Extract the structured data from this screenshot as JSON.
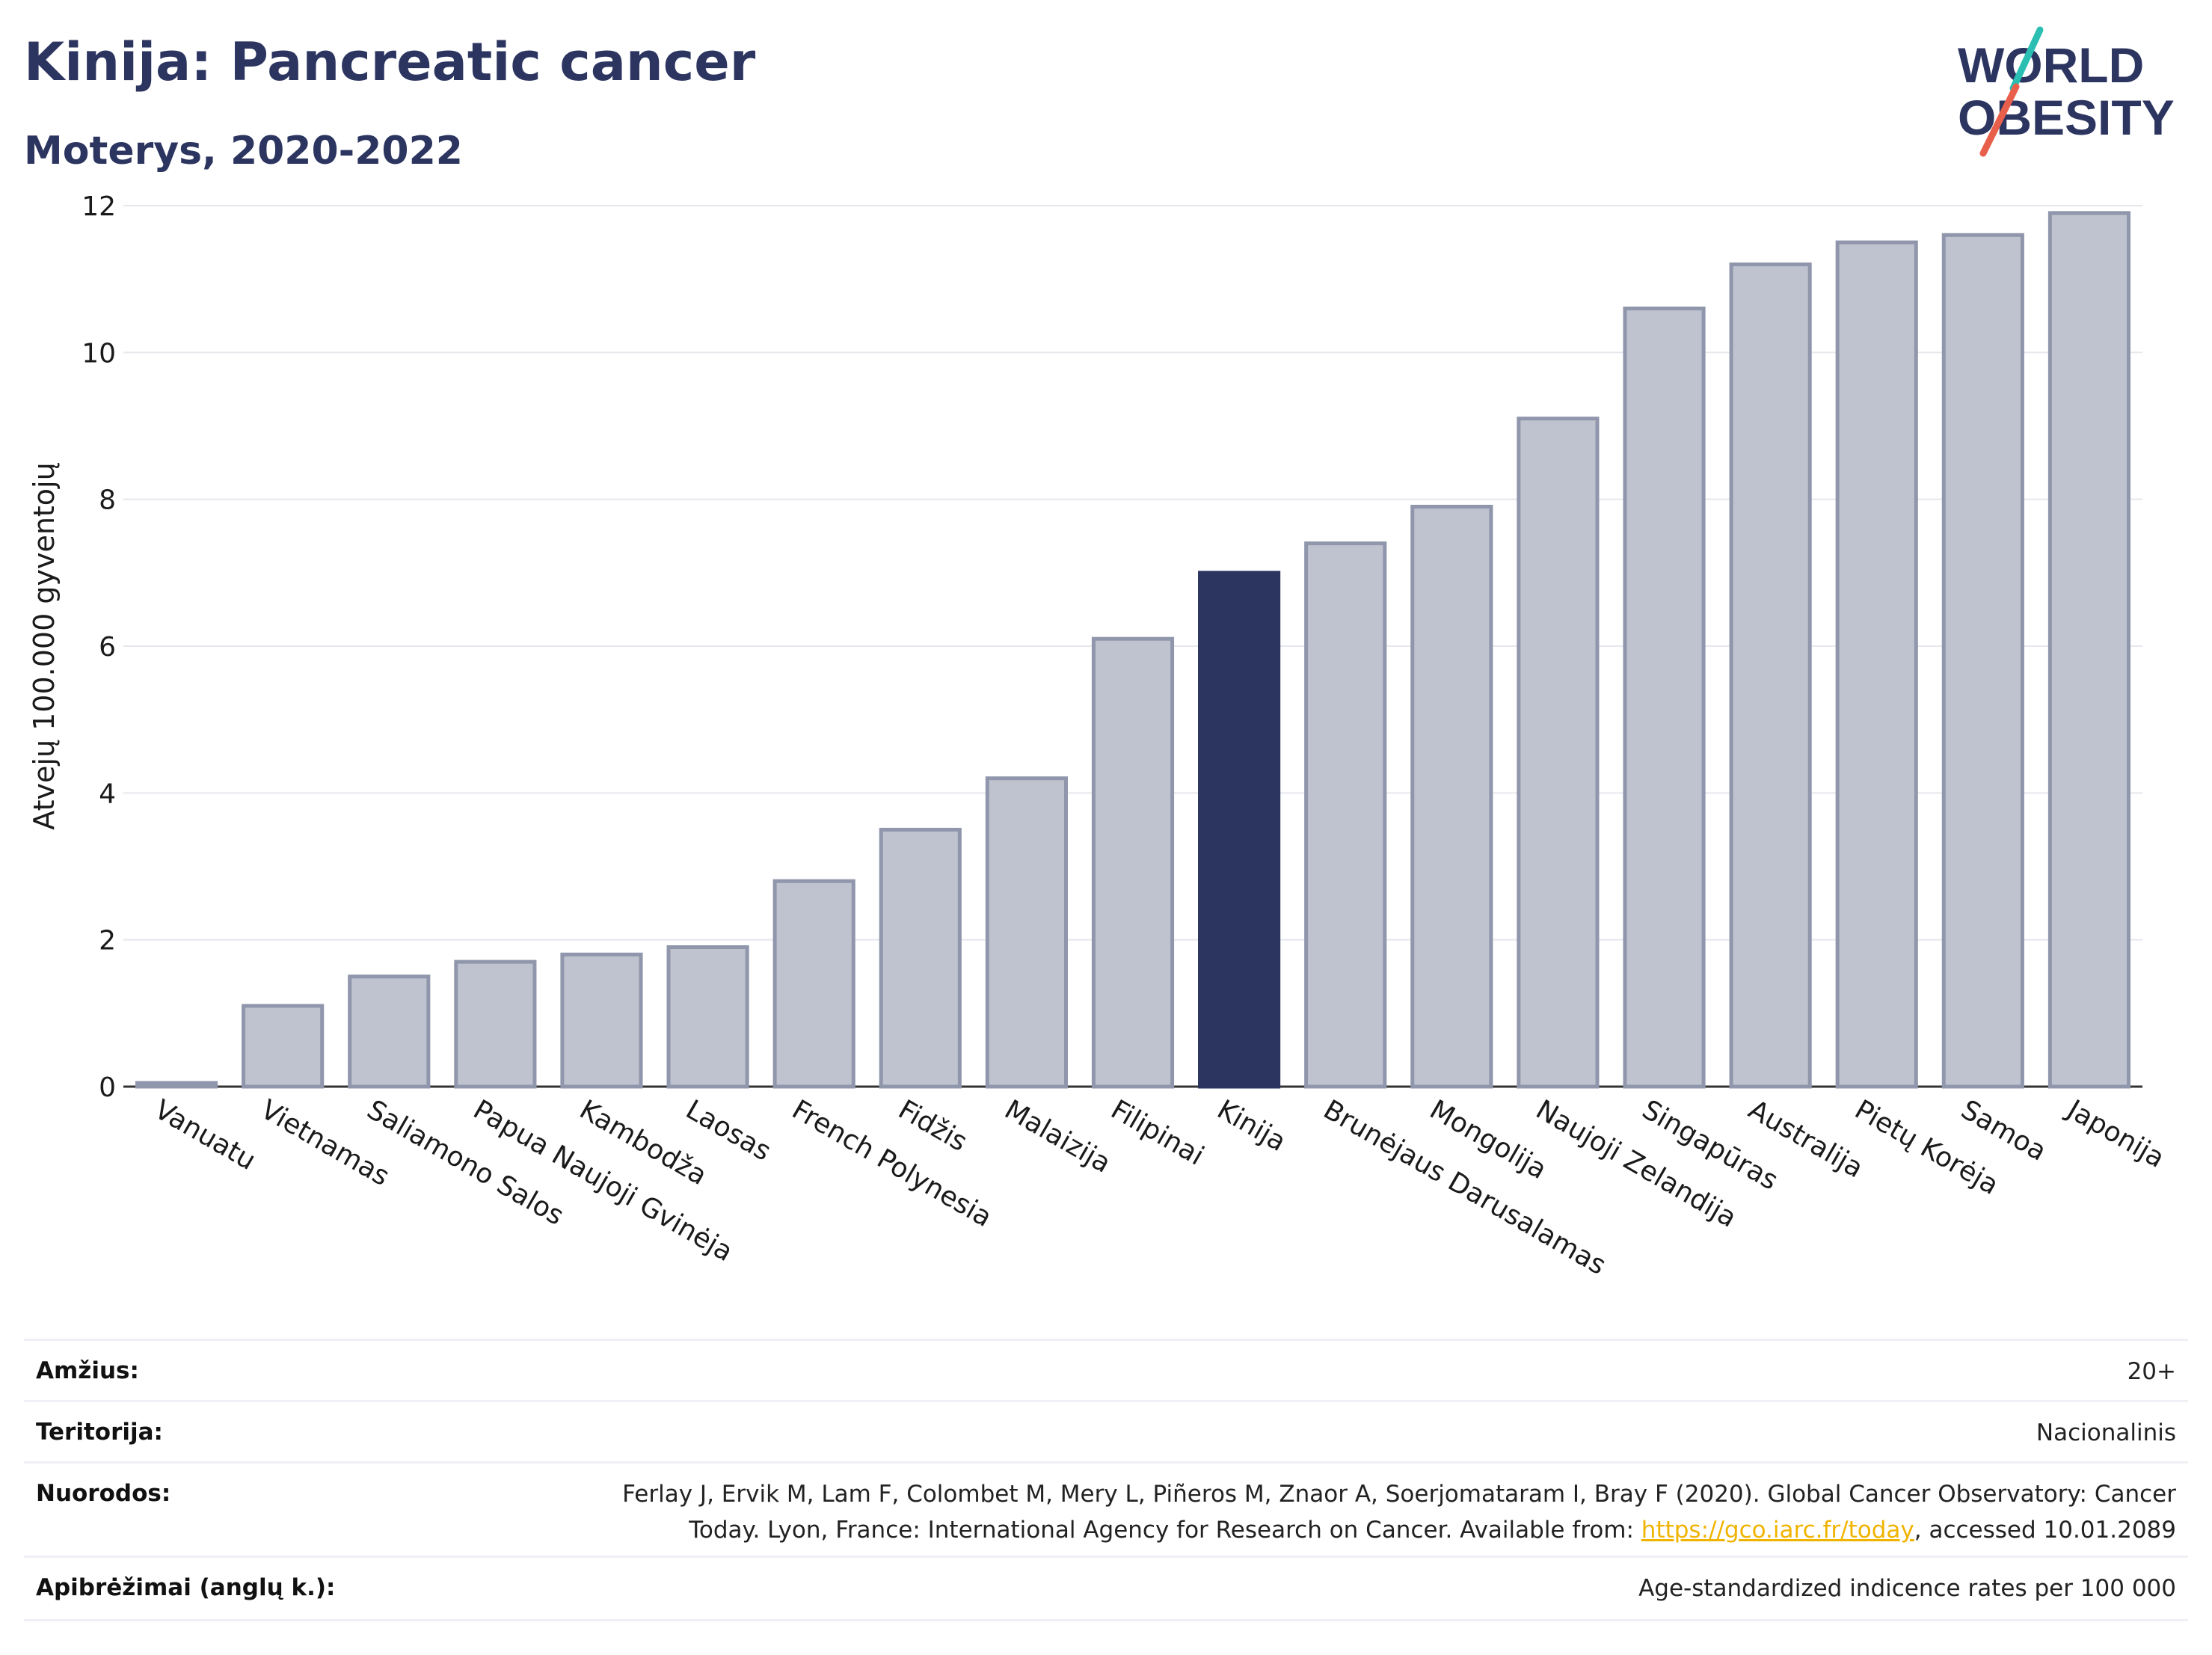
{
  "header": {
    "title": "Kinija: Pancreatic cancer",
    "subtitle": "Moterys, 2020-2022"
  },
  "logo": {
    "line1": "WORLD",
    "line2": "OBESITY",
    "brand_color": "#2c3560",
    "accent_teal": "#2bbfb3",
    "accent_red": "#e8604c"
  },
  "colors": {
    "bar_default": "#bfc3cf",
    "bar_border": "#9096ab",
    "bar_highlight": "#2c3560",
    "gridline": "#e6e8ee"
  },
  "chart_data": {
    "type": "bar",
    "title": "Kinija: Pancreatic cancer",
    "subtitle": "Moterys, 2020-2022",
    "ylabel": "Atvejų 100.000 gyventojų",
    "xlabel": "",
    "ylim": [
      0,
      12
    ],
    "yticks": [
      0,
      2,
      4,
      6,
      8,
      10,
      12
    ],
    "grid": true,
    "highlight": "Kinija",
    "categories": [
      "Vanuatu",
      "Vietnamas",
      "Saliamono Salos",
      "Papua Naujoji Gvinėja",
      "Kambodža",
      "Laosas",
      "French Polynesia",
      "Fidžis",
      "Malaizija",
      "Filipinai",
      "Kinija",
      "Brunėjaus Darusalamas",
      "Mongolija",
      "Naujoji Zelandija",
      "Singapūras",
      "Australija",
      "Pietų Korėja",
      "Samoa",
      "Japonija"
    ],
    "values": [
      0.05,
      1.1,
      1.5,
      1.7,
      1.8,
      1.9,
      2.8,
      3.5,
      4.2,
      6.1,
      7.0,
      7.4,
      7.9,
      9.1,
      10.6,
      11.2,
      11.5,
      11.6,
      11.9
    ]
  },
  "info": {
    "age_label": "Amžius:",
    "age_value": "20+",
    "territory_label": "Teritorija:",
    "territory_value": "Nacionalinis",
    "refs_label": "Nuorodos:",
    "refs_line1": "Ferlay J, Ervik M, Lam F, Colombet M, Mery L, Piñeros M, Znaor A, Soerjomataram I, Bray F (2020). Global Cancer Observatory: Cancer",
    "refs_line2_pre": "Today. Lyon, France: International Agency for Research on Cancer. Available from: ",
    "refs_link": "https://gco.iarc.fr/today",
    "refs_line2_post": ", accessed 10.01.2089",
    "defs_label": "Apibrėžimai (anglų k.):",
    "defs_value": "Age-standardized indicence rates per 100 000"
  }
}
